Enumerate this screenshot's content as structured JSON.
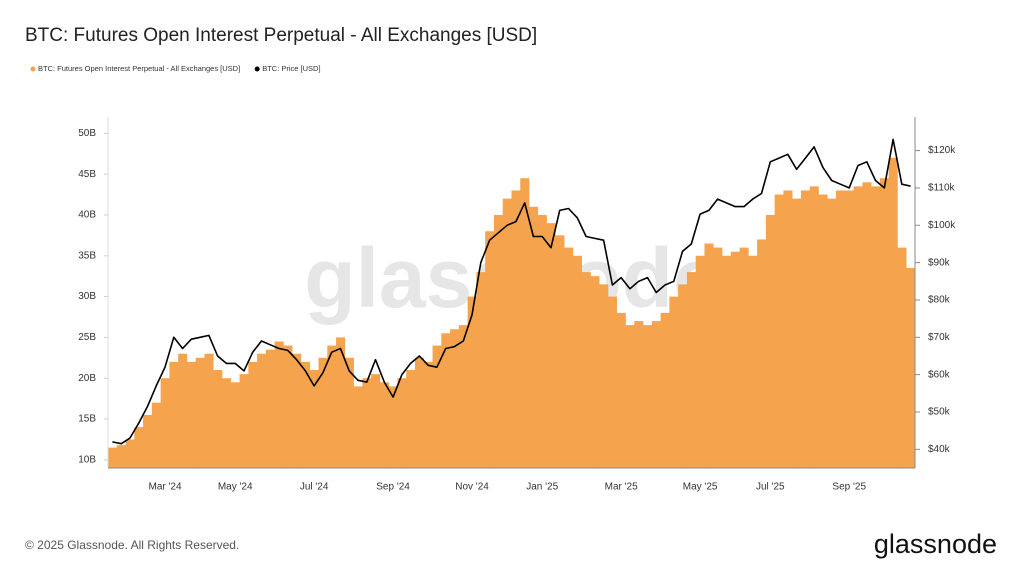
{
  "chart_data": {
    "type": "combo",
    "title": "BTC: Futures Open Interest Perpetual - All Exchanges [USD]",
    "watermark": "glassnode",
    "categories": [
      null,
      null,
      null,
      null,
      null,
      null,
      "Mar '24",
      null,
      null,
      null,
      null,
      null,
      null,
      null,
      "May '24",
      null,
      null,
      null,
      null,
      null,
      null,
      null,
      null,
      "Jul '24",
      null,
      null,
      null,
      null,
      null,
      null,
      null,
      null,
      "Sep '24",
      null,
      null,
      null,
      null,
      null,
      null,
      null,
      null,
      "Nov '24",
      null,
      null,
      null,
      null,
      null,
      null,
      null,
      "Jan '25",
      null,
      null,
      null,
      null,
      null,
      null,
      null,
      null,
      "Mar '25",
      null,
      null,
      null,
      null,
      null,
      null,
      null,
      null,
      "May '25",
      null,
      null,
      null,
      null,
      null,
      null,
      null,
      "Jul '25",
      null,
      null,
      null,
      null,
      null,
      null,
      null,
      null,
      "Sep '25",
      null,
      null,
      null,
      null,
      null,
      null,
      null
    ],
    "series": [
      {
        "name": "BTC: Futures Open Interest Perpetual - All Exchanges [USD]",
        "type": "bar",
        "color": "#f5a34c",
        "values": [
          11500000000,
          11800000000,
          12500000000,
          14000000000,
          15500000000,
          17000000000,
          20000000000,
          22000000000,
          23000000000,
          22000000000,
          22500000000,
          23000000000,
          21000000000,
          20000000000,
          19500000000,
          20500000000,
          22000000000,
          23000000000,
          23500000000,
          24500000000,
          24000000000,
          23000000000,
          22000000000,
          21000000000,
          22500000000,
          24000000000,
          25000000000,
          22500000000,
          19000000000,
          20000000000,
          20500000000,
          19500000000,
          19000000000,
          20000000000,
          21000000000,
          22500000000,
          22000000000,
          24000000000,
          25500000000,
          26000000000,
          26500000000,
          30000000000,
          33000000000,
          38000000000,
          40000000000,
          42000000000,
          43000000000,
          44500000000,
          41000000000,
          40000000000,
          39000000000,
          37500000000,
          36000000000,
          35000000000,
          33000000000,
          32500000000,
          31500000000,
          30000000000,
          28000000000,
          26500000000,
          27000000000,
          26500000000,
          27000000000,
          28000000000,
          30000000000,
          31500000000,
          33000000000,
          35000000000,
          36500000000,
          36000000000,
          35000000000,
          35500000000,
          36000000000,
          35000000000,
          37000000000,
          40000000000,
          42500000000,
          43000000000,
          42000000000,
          43000000000,
          43500000000,
          42500000000,
          42000000000,
          43000000000,
          43000000000,
          43500000000,
          44000000000,
          43500000000,
          44500000000,
          47000000000,
          36000000000,
          33500000000
        ]
      },
      {
        "name": "BTC: Price [USD]",
        "type": "line",
        "axis": "y2",
        "color": "#000000",
        "values": [
          42000,
          41500,
          43000,
          47000,
          51500,
          57000,
          62000,
          70000,
          67000,
          69500,
          70000,
          70500,
          65000,
          63000,
          63000,
          61000,
          66000,
          69000,
          68000,
          67000,
          66500,
          64000,
          61000,
          57000,
          60500,
          66000,
          67000,
          61000,
          58500,
          58000,
          64000,
          58000,
          54000,
          60000,
          63000,
          65000,
          62500,
          62000,
          67000,
          67500,
          69000,
          76000,
          90000,
          96000,
          98000,
          100000,
          101000,
          106000,
          97000,
          97000,
          94000,
          104000,
          104500,
          102000,
          97000,
          96500,
          96000,
          84000,
          86000,
          83000,
          85000,
          86000,
          82000,
          84000,
          85000,
          93000,
          95000,
          103000,
          104000,
          107000,
          106000,
          105000,
          105000,
          107000,
          108500,
          117000,
          118000,
          119000,
          115000,
          118000,
          121000,
          115500,
          112000,
          111000,
          110000,
          116000,
          117000,
          112000,
          110000,
          123000,
          111000,
          110500
        ]
      }
    ],
    "ylim": [
      9000000000,
      52000000000
    ],
    "yticks": [
      {
        "value": 10000000000,
        "label": "10B"
      },
      {
        "value": 15000000000,
        "label": "15B"
      },
      {
        "value": 20000000000,
        "label": "20B"
      },
      {
        "value": 25000000000,
        "label": "25B"
      },
      {
        "value": 30000000000,
        "label": "30B"
      },
      {
        "value": 35000000000,
        "label": "35B"
      },
      {
        "value": 40000000000,
        "label": "40B"
      },
      {
        "value": 45000000000,
        "label": "45B"
      },
      {
        "value": 50000000000,
        "label": "50B"
      }
    ],
    "y2lim": [
      35000,
      129000
    ],
    "y2ticks": [
      {
        "value": 40000,
        "label": "$40k"
      },
      {
        "value": 50000,
        "label": "$50k"
      },
      {
        "value": 60000,
        "label": "$60k"
      },
      {
        "value": 70000,
        "label": "$70k"
      },
      {
        "value": 80000,
        "label": "$80k"
      },
      {
        "value": 90000,
        "label": "$90k"
      },
      {
        "value": 100000,
        "label": "$100k"
      },
      {
        "value": 110000,
        "label": "$110k"
      },
      {
        "value": 120000,
        "label": "$120k"
      }
    ],
    "grid": false
  },
  "footer": {
    "copyright": "© 2025 Glassnode. All Rights Reserved.",
    "logo": "glassnode"
  }
}
